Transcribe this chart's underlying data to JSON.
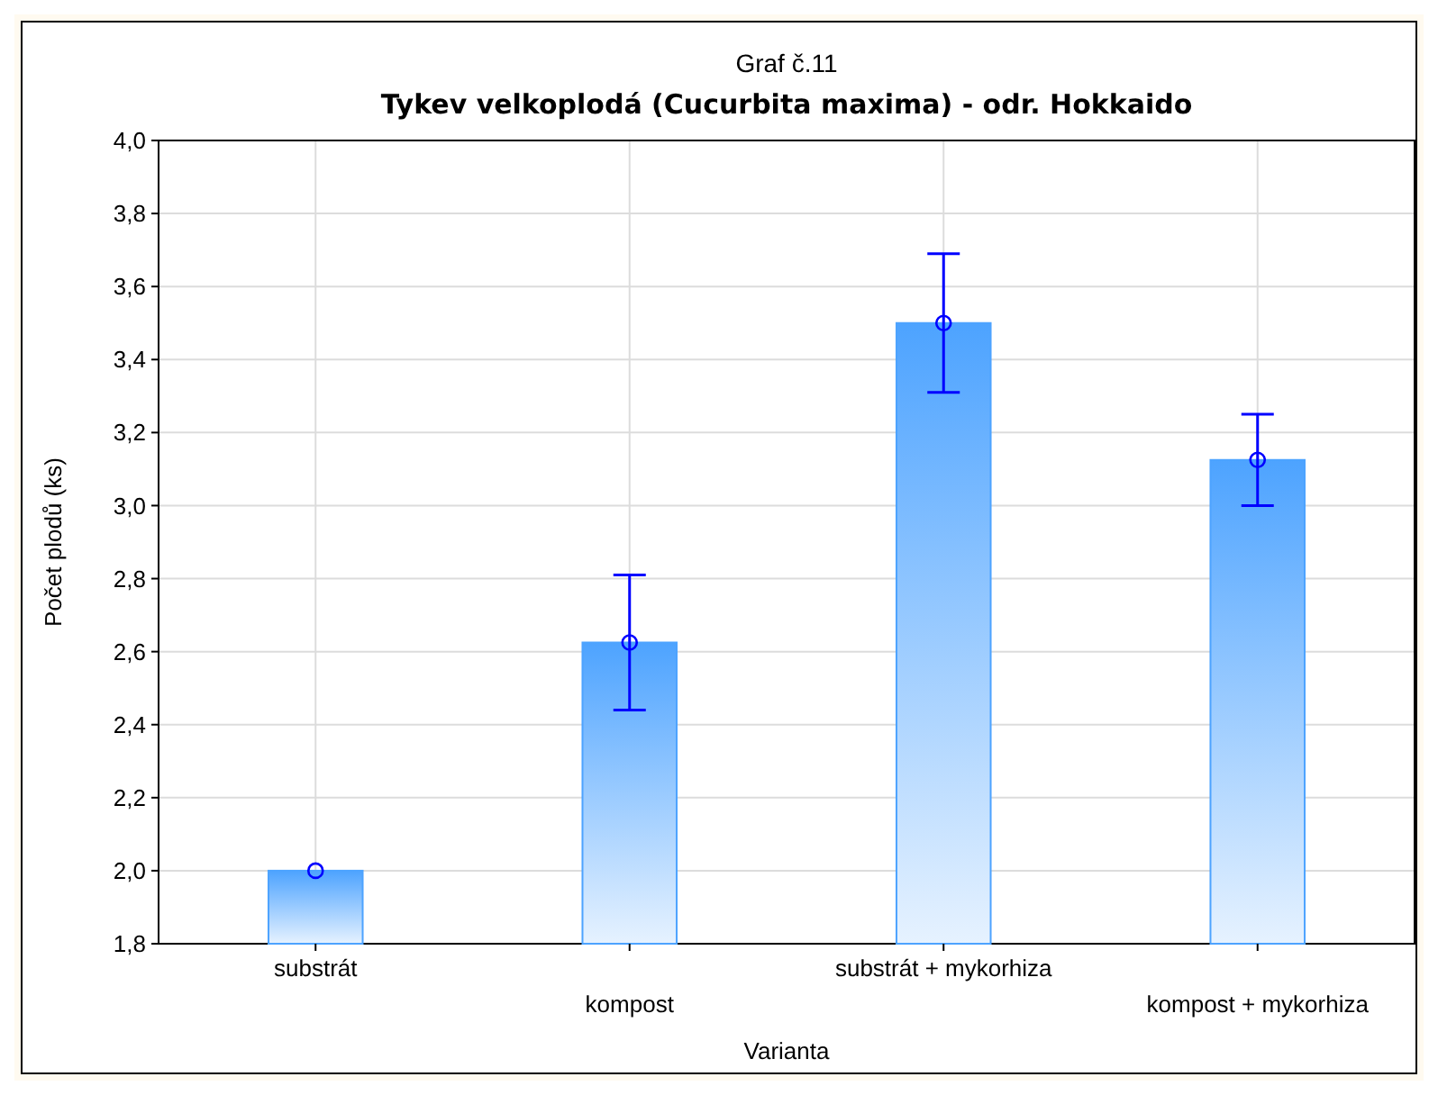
{
  "chart_data": {
    "type": "bar",
    "title": "Graf č.11",
    "subtitle": "Tykev velkoplodá (Cucurbita maxima) - odr. Hokkaido",
    "xlabel": "Varianta",
    "ylabel": "Počet plodů (ks)",
    "categories": [
      "substrát",
      "kompost",
      "substrát + mykorhiza",
      "kompost + mykorhiza"
    ],
    "series": [
      {
        "color": "#4da3ff",
        "values": [
          2.0,
          2.625,
          3.5,
          3.125
        ],
        "errors": [
          null,
          [
            2.44,
            2.81
          ],
          [
            3.31,
            3.69
          ],
          [
            3.0,
            3.25
          ]
        ]
      },
      {
        "type": "scatter",
        "color": "#0000ff",
        "marker": "circle",
        "x": [
          "substrát",
          "kompost",
          "substrát + mykorhiza",
          "kompost + mykorhiza"
        ],
        "values": [
          2.0,
          2.625,
          3.5,
          3.125
        ]
      }
    ],
    "ylim": [
      1.8,
      4.0
    ],
    "yticks": [
      {
        "value": 1.8,
        "label": "1,8"
      },
      {
        "value": 2.0,
        "label": "2,0"
      },
      {
        "value": 2.2,
        "label": "2,2"
      },
      {
        "value": 2.4,
        "label": "2,4"
      },
      {
        "value": 2.6,
        "label": "2,6"
      },
      {
        "value": 2.8,
        "label": "2,8"
      },
      {
        "value": 3.0,
        "label": "3,0"
      },
      {
        "value": 3.2,
        "label": "3,2"
      },
      {
        "value": 3.4,
        "label": "3,4"
      },
      {
        "value": 3.6,
        "label": "3,6"
      },
      {
        "value": 3.8,
        "label": "3,8"
      },
      {
        "value": 4.0,
        "label": "4,0"
      }
    ],
    "grid": true
  }
}
